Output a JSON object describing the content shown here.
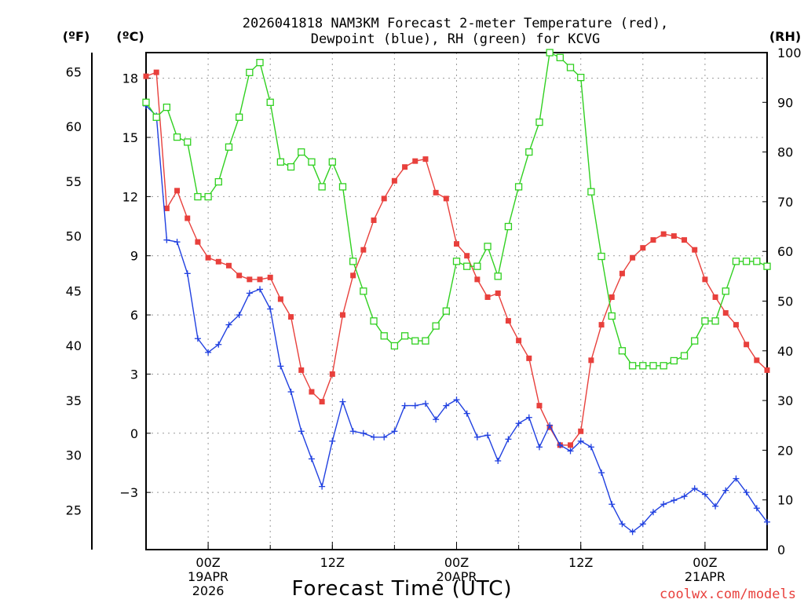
{
  "chart_data": {
    "type": "line",
    "title": [
      "2026041818 NAM3KM Forecast 2-meter Temperature (red),",
      "Dewpoint (blue), RH (green) for KCVG"
    ],
    "xlabel": "Forecast Time (UTC)",
    "credit": "coolwx.com/models",
    "units": {
      "fahrenheit": "(ºF)",
      "celsius": "(ºC)",
      "rh": "(RH)"
    },
    "x_range_hours": [
      -6,
      54
    ],
    "y_left_celsius_range": [
      -5.9,
      19.3
    ],
    "y_right_rh_range": [
      0,
      100
    ],
    "fahrenheit_ticks": [
      "25",
      "30",
      "35",
      "40",
      "45",
      "50",
      "55",
      "60",
      "65"
    ],
    "celsius_ticks": [
      "-3",
      "0",
      "3",
      "6",
      "9",
      "12",
      "15",
      "18"
    ],
    "rh_ticks": [
      "0",
      "10",
      "20",
      "30",
      "40",
      "50",
      "60",
      "70",
      "80",
      "90",
      "100"
    ],
    "x_ticks": [
      {
        "hour": 0,
        "lines": [
          "00Z",
          "19APR",
          "2026"
        ]
      },
      {
        "hour": 12,
        "lines": [
          "12Z"
        ]
      },
      {
        "hour": 24,
        "lines": [
          "00Z",
          "20APR"
        ]
      },
      {
        "hour": 36,
        "lines": [
          "12Z"
        ]
      },
      {
        "hour": 48,
        "lines": [
          "00Z",
          "21APR"
        ]
      }
    ],
    "series": [
      {
        "name": "2-meter Temperature",
        "unit": "C",
        "color": "#e8403c",
        "marker": "filled-square",
        "values": [
          18.1,
          18.3,
          11.4,
          12.3,
          10.9,
          9.7,
          8.9,
          8.7,
          8.5,
          8.0,
          7.8,
          7.8,
          7.9,
          6.8,
          5.9,
          3.2,
          2.1,
          1.6,
          3.0,
          6.0,
          8.0,
          9.3,
          10.8,
          11.9,
          12.8,
          13.5,
          13.8,
          13.9,
          12.2,
          11.9,
          9.6,
          9.0,
          7.8,
          6.9,
          7.1,
          5.7,
          4.7,
          3.8,
          1.4,
          0.3,
          -0.6,
          -0.6,
          0.1,
          3.7,
          5.5,
          6.9,
          8.1,
          8.9,
          9.4,
          9.8,
          10.1,
          10.0,
          9.8,
          9.3,
          7.8,
          6.9,
          6.1,
          5.5,
          4.5,
          3.7,
          3.2
        ]
      },
      {
        "name": "Dewpoint",
        "unit": "C",
        "color": "#2040e0",
        "marker": "plus",
        "values": [
          16.6,
          16.1,
          9.8,
          9.7,
          8.1,
          4.8,
          4.1,
          4.5,
          5.5,
          6.0,
          7.1,
          7.3,
          6.3,
          3.4,
          2.1,
          0.1,
          -1.3,
          -2.7,
          -0.4,
          1.6,
          0.1,
          0.0,
          -0.2,
          -0.2,
          0.1,
          1.4,
          1.4,
          1.5,
          0.7,
          1.4,
          1.7,
          1.0,
          -0.2,
          -0.1,
          -1.4,
          -0.3,
          0.5,
          0.8,
          -0.7,
          0.4,
          -0.6,
          -0.9,
          -0.4,
          -0.7,
          -2.0,
          -3.6,
          -4.6,
          -5.0,
          -4.6,
          -4.0,
          -3.6,
          -3.4,
          -3.2,
          -2.8,
          -3.1,
          -3.7,
          -2.9,
          -2.3,
          -3.0,
          -3.8,
          -4.5
        ]
      },
      {
        "name": "RH",
        "unit": "%",
        "color": "#30d020",
        "marker": "open-square",
        "values": [
          90,
          87,
          89,
          83,
          82,
          71,
          71,
          74,
          81,
          87,
          96,
          98,
          90,
          78,
          77,
          80,
          78,
          73,
          78,
          73,
          58,
          52,
          46,
          43,
          41,
          43,
          42,
          42,
          45,
          48,
          58,
          57,
          57,
          61,
          55,
          65,
          73,
          80,
          86,
          100,
          99,
          97,
          95,
          72,
          59,
          47,
          40,
          37,
          37,
          37,
          37,
          38,
          39,
          42,
          46,
          46,
          52,
          58,
          58,
          58,
          57
        ]
      }
    ]
  }
}
